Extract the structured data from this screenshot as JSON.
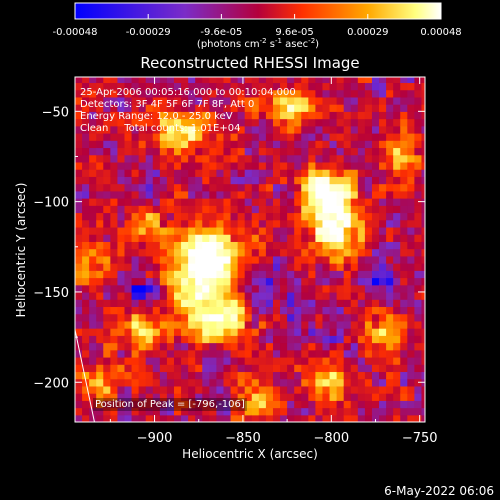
{
  "colorbar": {
    "ticks": [
      "-0.00048",
      "-0.00029",
      "-9.6e-05",
      "9.6e-05",
      "0.00029",
      "0.00048"
    ],
    "unit_main": "(photons cm",
    "unit_sup1": "-2",
    "unit_mid": " s",
    "unit_sup2": "-1",
    "unit_end": " asec",
    "unit_sup3": "-2",
    "unit_close": ")",
    "range": [
      -0.00048,
      0.00048
    ]
  },
  "chart_data": {
    "type": "heatmap",
    "title": "Reconstructed RHESSI Image",
    "xlabel": "Heliocentric X (arcsec)",
    "ylabel": "Heliocentric Y (arcsec)",
    "xlim": [
      -945,
      -747
    ],
    "ylim": [
      -222,
      -31
    ],
    "x_ticks": [
      -900,
      -850,
      -800,
      -750
    ],
    "y_ticks": [
      -50,
      -100,
      -150,
      -200
    ],
    "annotations": [
      "25-Apr-2006 00:05:16.000 to 00:10:04.000",
      "Detectors: 3F 4F 5F 6F 7F 8F, Att 0",
      "Energy Range: 12.0 - 25.0 keV",
      "Clean     Total counts: 1.01E+04"
    ],
    "peak_label": "Position of Peak = [-796,-106]",
    "peak": [
      -796,
      -106
    ],
    "grid": false,
    "colormap": [
      "#0000ff",
      "#7b2cc8",
      "#b4003c",
      "#ff3000",
      "#ffa800",
      "#ffff80",
      "#ffffff"
    ],
    "value_range": [
      -0.00048,
      0.00048
    ],
    "hot_regions": [
      {
        "x": -875,
        "y": -145,
        "sx": 14,
        "sy": 18,
        "amp": 1.0
      },
      {
        "x": -868,
        "y": -128,
        "sx": 10,
        "sy": 8,
        "amp": 0.8
      },
      {
        "x": -860,
        "y": -165,
        "sx": 10,
        "sy": 8,
        "amp": 0.7
      },
      {
        "x": -800,
        "y": -106,
        "sx": 11,
        "sy": 11,
        "amp": 1.0
      },
      {
        "x": -805,
        "y": -90,
        "sx": 9,
        "sy": 8,
        "amp": 0.7
      },
      {
        "x": -795,
        "y": -122,
        "sx": 8,
        "sy": 8,
        "amp": 0.6
      },
      {
        "x": -885,
        "y": -60,
        "sx": 11,
        "sy": 8,
        "amp": 0.85
      },
      {
        "x": -825,
        "y": -48,
        "sx": 10,
        "sy": 7,
        "amp": 0.75
      },
      {
        "x": -905,
        "y": -110,
        "sx": 9,
        "sy": 9,
        "amp": 0.55
      },
      {
        "x": -910,
        "y": -170,
        "sx": 9,
        "sy": 8,
        "amp": 0.6
      },
      {
        "x": -800,
        "y": -200,
        "sx": 9,
        "sy": 9,
        "amp": 0.65
      },
      {
        "x": -770,
        "y": -170,
        "sx": 8,
        "sy": 9,
        "amp": 0.6
      },
      {
        "x": -930,
        "y": -200,
        "sx": 8,
        "sy": 8,
        "amp": 0.55
      },
      {
        "x": -840,
        "y": -210,
        "sx": 8,
        "sy": 7,
        "amp": 0.6
      },
      {
        "x": -760,
        "y": -75,
        "sx": 8,
        "sy": 10,
        "amp": 0.55
      },
      {
        "x": -845,
        "y": -120,
        "sx": 6,
        "sy": 6,
        "amp": 0.45
      },
      {
        "x": -935,
        "y": -135,
        "sx": 7,
        "sy": 7,
        "amp": 0.45
      }
    ],
    "cold_regions": [
      {
        "x": -905,
        "y": -150,
        "sx": 9,
        "sy": 8,
        "amp": 0.9
      },
      {
        "x": -840,
        "y": -150,
        "sx": 8,
        "sy": 8,
        "amp": 0.7
      },
      {
        "x": -770,
        "y": -150,
        "sx": 8,
        "sy": 8,
        "amp": 0.8
      },
      {
        "x": -905,
        "y": -100,
        "sx": 8,
        "sy": 7,
        "amp": 0.6
      },
      {
        "x": -820,
        "y": -160,
        "sx": 6,
        "sy": 6,
        "amp": 0.6
      },
      {
        "x": -800,
        "y": -175,
        "sx": 6,
        "sy": 6,
        "amp": 0.5
      }
    ],
    "limb_line": [
      [
        -945,
        -171
      ],
      [
        -934,
        -222
      ]
    ]
  },
  "footer": {
    "date_stamp": "6-May-2022 06:06"
  }
}
